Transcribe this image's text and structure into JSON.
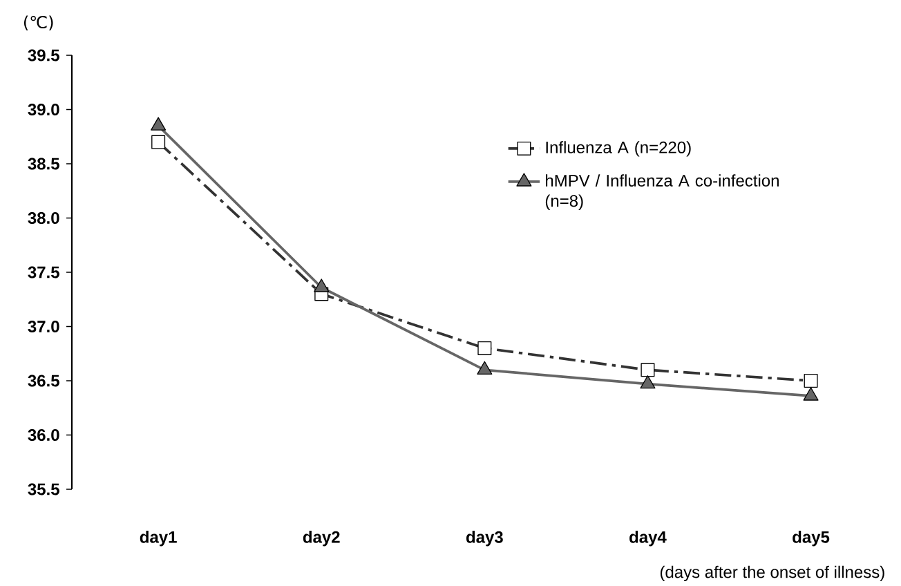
{
  "chart_data": {
    "type": "line",
    "categories": [
      "day1",
      "day2",
      "day3",
      "day4",
      "day5"
    ],
    "xlabel": "(days after the onset of illness)",
    "ylabel": "(℃)",
    "ylim": [
      35.5,
      39.5
    ],
    "yticks": [
      {
        "value": 35.5,
        "label": "35.5"
      },
      {
        "value": 36,
        "label": "36.0"
      },
      {
        "value": 36.5,
        "label": "36.5"
      },
      {
        "value": 37,
        "label": "37.0"
      },
      {
        "value": 37.5,
        "label": "37.5"
      },
      {
        "value": 38,
        "label": "38.0"
      },
      {
        "value": 38.5,
        "label": "38.5"
      },
      {
        "value": 39,
        "label": "39.0"
      },
      {
        "value": 39.5,
        "label": "39.5"
      }
    ],
    "series": [
      {
        "name": "Influenza A (n=220)",
        "color": "#333333",
        "marker": "square",
        "line_style": "dashed",
        "values": [
          38.7,
          37.3,
          36.8,
          36.6,
          36.5
        ]
      },
      {
        "name": "hMPV / Influenza A co-infection (n=8)",
        "color": "#666666",
        "marker": "triangle",
        "line_style": "solid",
        "values": [
          38.85,
          37.36,
          36.6,
          36.47,
          36.36
        ]
      }
    ],
    "legend": "top right",
    "grid": false
  }
}
